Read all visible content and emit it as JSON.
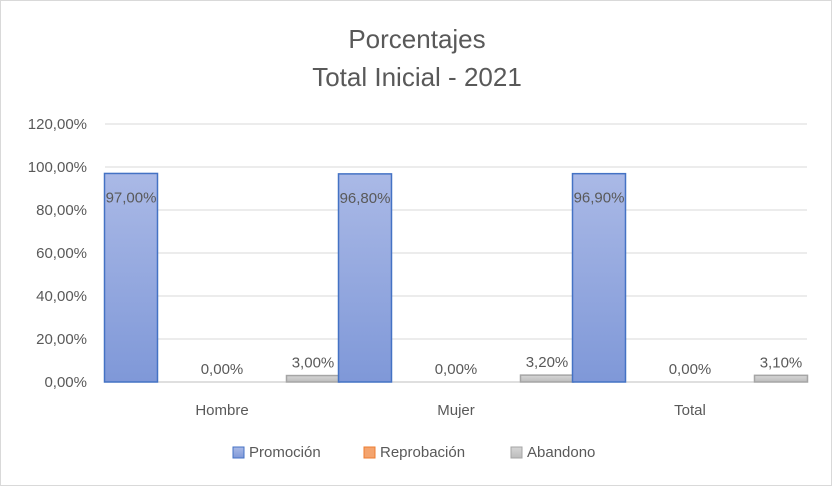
{
  "chart_data": {
    "type": "bar",
    "title_lines": [
      "Porcentajes",
      "Total Inicial - 2021"
    ],
    "categories": [
      "Hombre",
      "Mujer",
      "Total"
    ],
    "series": [
      {
        "name": "Promoción",
        "values": [
          97.0,
          96.8,
          96.9
        ],
        "labels": [
          "97,00%",
          "96,80%",
          "96,90%"
        ],
        "color": "#8ea4dc"
      },
      {
        "name": "Reprobación",
        "values": [
          0.0,
          0.0,
          0.0
        ],
        "labels": [
          "0,00%",
          "0,00%",
          "0,00%"
        ],
        "color": "#f4a46e"
      },
      {
        "name": "Abandono",
        "values": [
          3.0,
          3.2,
          3.1
        ],
        "labels": [
          "3,00%",
          "3,20%",
          "3,10%"
        ],
        "color": "#c9c9c9"
      }
    ],
    "yticks": [
      "0,00%",
      "20,00%",
      "40,00%",
      "60,00%",
      "80,00%",
      "100,00%",
      "120,00%"
    ],
    "ylim": [
      0,
      120
    ],
    "grid": true,
    "legend_position": "bottom"
  }
}
